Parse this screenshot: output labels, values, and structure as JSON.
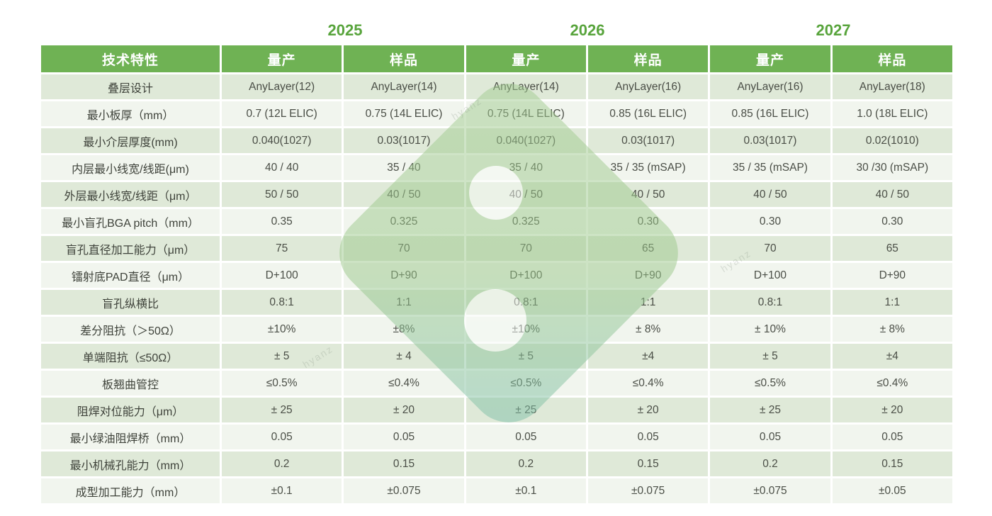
{
  "years": [
    "2025",
    "2026",
    "2027"
  ],
  "colors": {
    "header-bg": "#6fb254",
    "year-color": "#58a43c",
    "row-odd": "#dfe9d8",
    "row-even": "#f1f5ee",
    "label-text": "#3e423a",
    "value-text": "#4a4e46",
    "logo-green": "#a4cd93",
    "logo-teal": "#7cc0ad"
  },
  "watermark": {
    "text": "hyanz"
  },
  "table": {
    "header": [
      "技术特性",
      "量产",
      "样品",
      "量产",
      "样品",
      "量产",
      "样品"
    ],
    "rows": [
      {
        "label": "叠层设计",
        "values": [
          "AnyLayer(12)",
          "AnyLayer(14)",
          "AnyLayer(14)",
          "AnyLayer(16)",
          "AnyLayer(16)",
          "AnyLayer(18)"
        ]
      },
      {
        "label": "最小板厚（mm）",
        "values": [
          "0.7 (12L ELIC)",
          "0.75 (14L ELIC)",
          "0.75 (14L ELIC)",
          "0.85 (16L ELIC)",
          "0.85 (16L ELIC)",
          "1.0 (18L ELIC)"
        ]
      },
      {
        "label": "最小介层厚度(mm)",
        "values": [
          "0.040(1027)",
          "0.03(1017)",
          "0.040(1027)",
          "0.03(1017)",
          "0.03(1017)",
          "0.02(1010)"
        ]
      },
      {
        "label": "内层最小线宽/线距(μm)",
        "values": [
          "40 / 40",
          "35 / 40",
          "35 / 40",
          "35 / 35 (mSAP)",
          "35 / 35 (mSAP)",
          "30 /30 (mSAP)"
        ]
      },
      {
        "label": "外层最小线宽/线距（μm）",
        "values": [
          "50 / 50",
          "40 / 50",
          "40 / 50",
          "40 / 50",
          "40 / 50",
          "40 / 50"
        ]
      },
      {
        "label": "最小盲孔BGA pitch（mm）",
        "values": [
          "0.35",
          "0.325",
          "0.325",
          "0.30",
          "0.30",
          "0.30"
        ]
      },
      {
        "label": "盲孔直径加工能力（μm）",
        "values": [
          "75",
          "70",
          "70",
          "65",
          "70",
          "65"
        ]
      },
      {
        "label": "镭射底PAD直径（μm）",
        "values": [
          "D+100",
          "D+90",
          "D+100",
          "D+90",
          "D+100",
          "D+90"
        ]
      },
      {
        "label": "盲孔纵横比",
        "values": [
          "0.8:1",
          "1:1",
          "0.8:1",
          "1:1",
          "0.8:1",
          "1:1"
        ]
      },
      {
        "label": "差分阻抗（＞50Ω）",
        "values": [
          "±10%",
          "±8%",
          "±10%",
          "± 8%",
          "± 10%",
          "± 8%"
        ]
      },
      {
        "label": "单端阻抗（≤50Ω）",
        "values": [
          "± 5",
          "± 4",
          "± 5",
          "±4",
          "± 5",
          "±4"
        ]
      },
      {
        "label": "板翘曲管控",
        "values": [
          "≤0.5%",
          "≤0.4%",
          "≤0.5%",
          "≤0.4%",
          "≤0.5%",
          "≤0.4%"
        ]
      },
      {
        "label": "阻焊对位能力（μm）",
        "values": [
          "± 25",
          "± 20",
          "± 25",
          "± 20",
          "± 25",
          "± 20"
        ]
      },
      {
        "label": "最小绿油阻焊桥（mm）",
        "values": [
          "0.05",
          "0.05",
          "0.05",
          "0.05",
          "0.05",
          "0.05"
        ]
      },
      {
        "label": "最小机械孔能力（mm）",
        "values": [
          "0.2",
          "0.15",
          "0.2",
          "0.15",
          "0.2",
          "0.15"
        ]
      },
      {
        "label": "成型加工能力（mm）",
        "values": [
          "±0.1",
          "±0.075",
          "±0.1",
          "±0.075",
          "±0.075",
          "±0.05"
        ]
      }
    ]
  }
}
